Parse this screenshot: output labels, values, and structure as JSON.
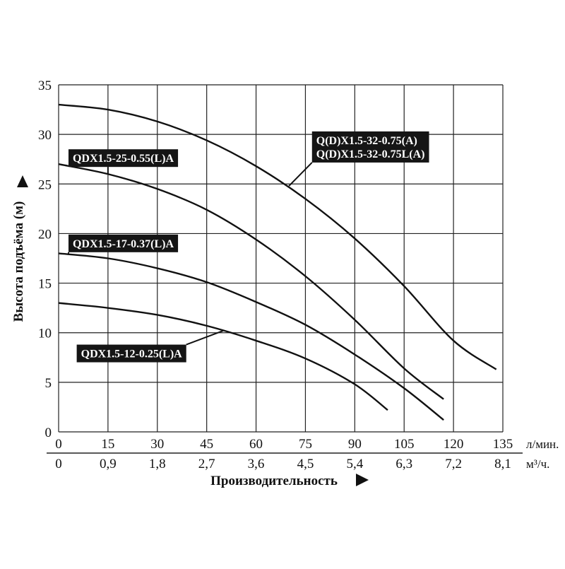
{
  "chart_data": {
    "type": "line",
    "ylabel": "Высота подъёма (м)",
    "xlabel": "Производительность",
    "x_unit_primary": "л/мин.",
    "x_unit_secondary": "м³/ч.",
    "xlim": [
      0,
      135
    ],
    "ylim": [
      0,
      35
    ],
    "x_ticks": [
      0,
      15,
      30,
      45,
      60,
      75,
      90,
      105,
      120,
      135
    ],
    "x_tick_labels": [
      "0",
      "15",
      "30",
      "45",
      "60",
      "75",
      "90",
      "105",
      "120",
      "135"
    ],
    "x_secondary_tick_labels": [
      "0",
      "0,9",
      "1,8",
      "2,7",
      "3,6",
      "4,5",
      "5,4",
      "6,3",
      "7,2",
      "8,1"
    ],
    "y_ticks": [
      0,
      5,
      10,
      15,
      20,
      25,
      30,
      35
    ],
    "y_tick_labels": [
      "0",
      "5",
      "10",
      "15",
      "20",
      "25",
      "30",
      "35"
    ],
    "grid": true,
    "series": [
      {
        "name": "Q(D)X1.5-32-0.75(A)\nQ(D)X1.5-32-0.75L(A)",
        "label_lines": [
          "Q(D)X1.5-32-0.75(A)",
          "Q(D)X1.5-32-0.75L(A)"
        ],
        "x": [
          0,
          15,
          30,
          45,
          60,
          75,
          90,
          105,
          120,
          133
        ],
        "y": [
          33.0,
          32.5,
          31.3,
          29.4,
          26.8,
          23.5,
          19.5,
          14.7,
          9.2,
          6.3
        ]
      },
      {
        "name": "QDX1.5-25-0.55(L)A",
        "label_lines": [
          "QDX1.5-25-0.55(L)A"
        ],
        "x": [
          0,
          15,
          30,
          45,
          60,
          75,
          90,
          105,
          117
        ],
        "y": [
          27.0,
          26.0,
          24.5,
          22.4,
          19.4,
          15.7,
          11.3,
          6.4,
          3.3
        ]
      },
      {
        "name": "QDX1.5-17-0.37(L)A",
        "label_lines": [
          "QDX1.5-17-0.37(L)A"
        ],
        "x": [
          0,
          15,
          30,
          45,
          60,
          75,
          90,
          105,
          117
        ],
        "y": [
          18.0,
          17.5,
          16.5,
          15.1,
          13.1,
          10.8,
          7.8,
          4.4,
          1.2
        ]
      },
      {
        "name": "QDX1.5-12-0.25(L)A",
        "label_lines": [
          "QDX1.5-12-0.25(L)A"
        ],
        "x": [
          0,
          15,
          30,
          45,
          60,
          75,
          90,
          100
        ],
        "y": [
          13.0,
          12.5,
          11.8,
          10.7,
          9.2,
          7.4,
          4.8,
          2.2
        ]
      }
    ],
    "annotations": [
      {
        "series": 0,
        "box_x": 77,
        "box_y": 30.3,
        "point_x": 70,
        "point_y": 24.8
      },
      {
        "series": 1,
        "box_x": 3,
        "box_y": 28.5,
        "point_x": 15,
        "point_y": 26.0
      },
      {
        "series": 2,
        "box_x": 3,
        "box_y": 19.9,
        "point_x": 3,
        "point_y": 18.0
      },
      {
        "series": 3,
        "box_x": 5.5,
        "box_y": 8.8,
        "point_x": 50,
        "point_y": 10.2
      }
    ]
  },
  "colors": {
    "line": "#111111",
    "grid": "#222222",
    "label_bg": "#151515",
    "label_text": "#ffffff"
  }
}
